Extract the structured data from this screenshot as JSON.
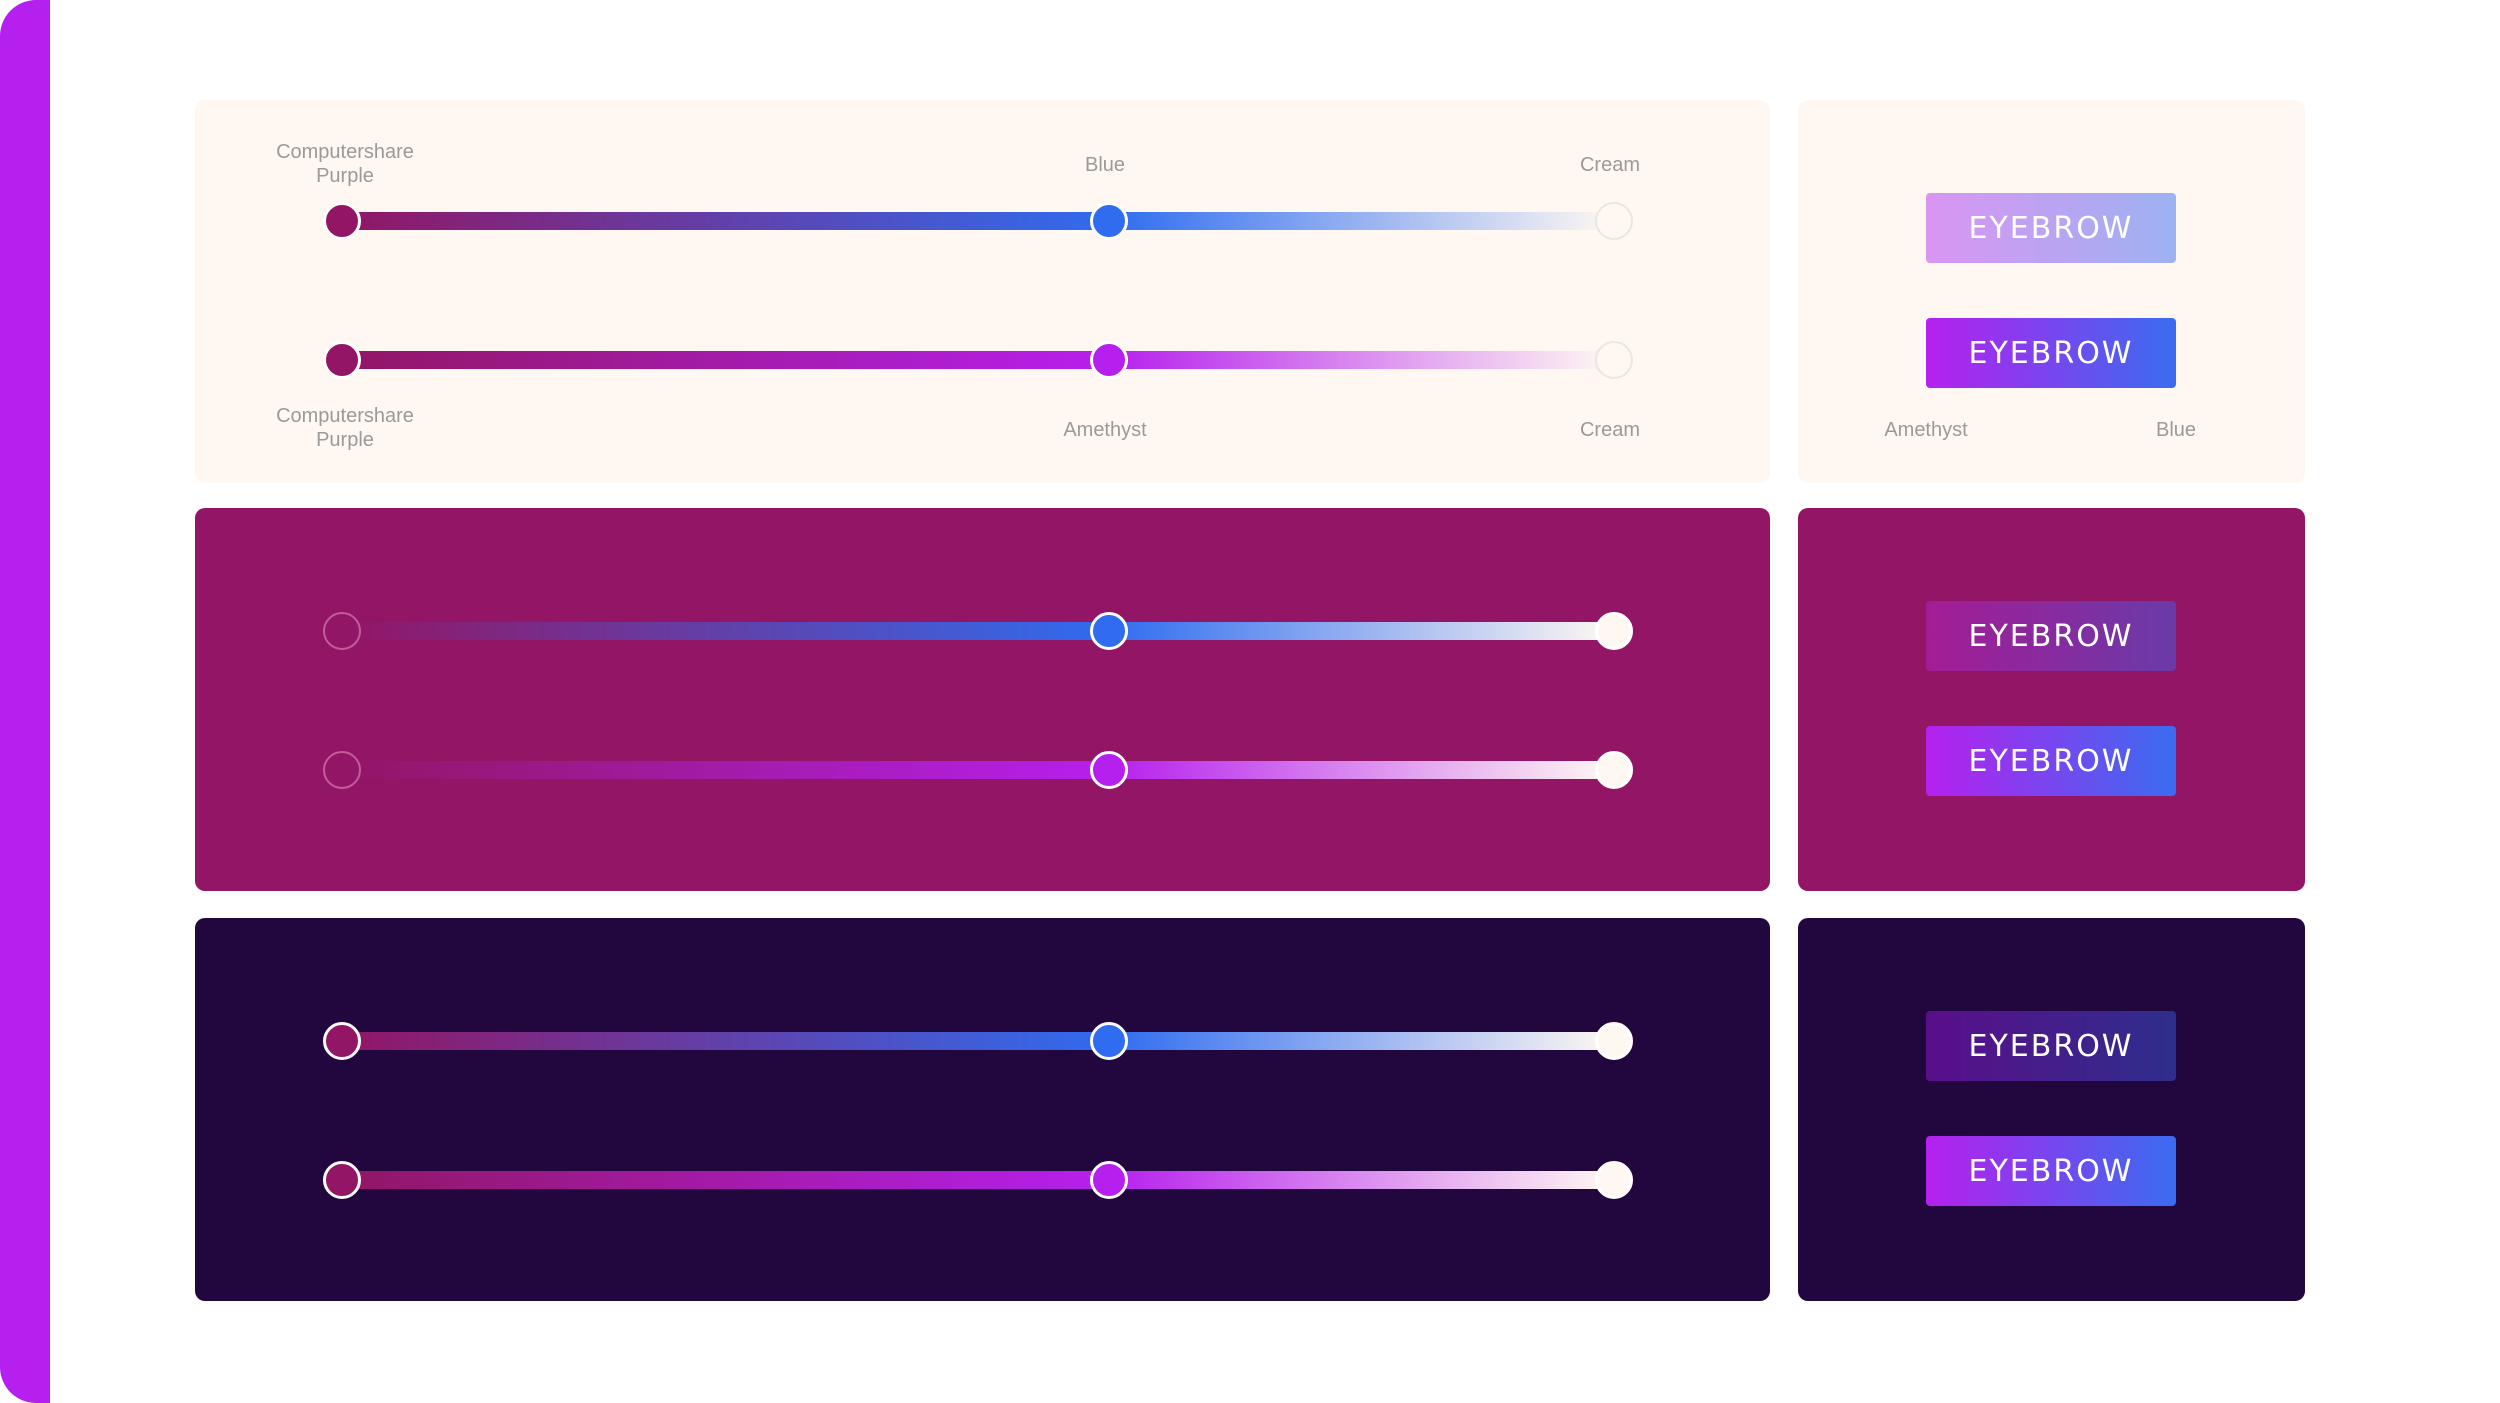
{
  "colors": {
    "accent": "#b620ee",
    "cream": "#fff8f2",
    "computershare_purple": "#921665",
    "blue": "#2f6cf0",
    "amethyst": "#b620ee",
    "dark": "#22063e"
  },
  "rows": [
    {
      "theme": "cream",
      "slider_blue": {
        "start_label": "Computershare Purple",
        "mid_label": "Blue",
        "end_label": "Cream"
      },
      "slider_amethyst": {
        "start_label": "Computershare Purple",
        "mid_label": "Amethyst",
        "end_label": "Cream"
      },
      "buttons": [
        "EYEBROW",
        "EYEBROW"
      ],
      "button_labels": {
        "left": "Amethyst",
        "right": "Blue"
      }
    },
    {
      "theme": "purple",
      "buttons": [
        "EYEBROW",
        "EYEBROW"
      ]
    },
    {
      "theme": "dark",
      "buttons": [
        "EYEBROW",
        "EYEBROW"
      ]
    }
  ]
}
